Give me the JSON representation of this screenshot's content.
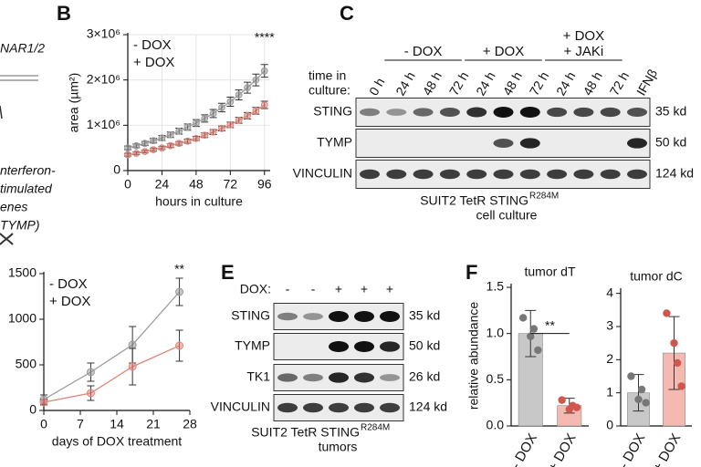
{
  "panel_labels": [
    "B",
    "C",
    "E",
    "F"
  ],
  "fragments": [
    "NAR1/2",
    "nterferon-",
    "timulated",
    "enes",
    "TYMP)"
  ],
  "chart_data": [
    {
      "type": "line",
      "xlabel": "hours in culture",
      "ylabel": "area (µm²)",
      "x": [
        0,
        6,
        12,
        18,
        24,
        30,
        36,
        42,
        48,
        54,
        60,
        66,
        72,
        78,
        84,
        90,
        96
      ],
      "series": [
        {
          "name": "- DOX",
          "color": "#9a9a9a",
          "label_color": "#555555",
          "values": [
            500000,
            547000,
            600000,
            660000,
            720000,
            790000,
            870000,
            960000,
            1050000,
            1150000,
            1260000,
            1390000,
            1520000,
            1670000,
            1830000,
            2000000,
            2200000
          ],
          "errors": [
            40000,
            40000,
            45000,
            50000,
            55000,
            60000,
            65000,
            70000,
            75000,
            80000,
            90000,
            95000,
            100000,
            110000,
            120000,
            130000,
            140000
          ]
        },
        {
          "name": "+ DOX",
          "color": "#e0857a",
          "label_color": "#d0574c",
          "values": [
            350000,
            380000,
            420000,
            460000,
            500000,
            550000,
            600000,
            650000,
            710000,
            780000,
            850000,
            930000,
            1010000,
            1110000,
            1210000,
            1320000,
            1450000
          ],
          "errors": [
            30000,
            30000,
            30000,
            35000,
            35000,
            40000,
            40000,
            45000,
            45000,
            50000,
            55000,
            55000,
            60000,
            65000,
            70000,
            75000,
            80000
          ]
        }
      ],
      "xlim": [
        0,
        100
      ],
      "xticks": [
        0,
        24,
        48,
        72,
        96
      ],
      "ylim": [
        0,
        3000000
      ],
      "yticks": [
        0,
        {
          "value": 1000000,
          "label": "1×10⁶"
        },
        {
          "value": 2000000,
          "label": "2×10⁶"
        },
        {
          "value": 3000000,
          "label": "3×10⁶"
        }
      ],
      "grid": true,
      "legend": "upper left",
      "annotations": [
        {
          "text": "****",
          "x": 96
        }
      ]
    },
    {
      "type": "line",
      "xlabel": "days of DOX treatment",
      "x": [
        0,
        9,
        17,
        26
      ],
      "series": [
        {
          "name": "- DOX",
          "color": "#9a9a9a",
          "label_color": "#222222",
          "values": [
            120,
            420,
            720,
            1300
          ],
          "errors": [
            50,
            100,
            200,
            150
          ]
        },
        {
          "name": "+ DOX",
          "color": "#e0857a",
          "label_color": "#d0574c",
          "values": [
            90,
            190,
            480,
            710
          ],
          "errors": [
            30,
            80,
            200,
            170
          ]
        }
      ],
      "xlim": [
        0,
        28
      ],
      "xticks": [
        0,
        7,
        14,
        21,
        28
      ],
      "ylim": [
        0,
        1500
      ],
      "yticks": [
        0,
        500,
        1000,
        1500
      ],
      "grid": false,
      "legend": "upper left",
      "annotations": [
        {
          "text": "**",
          "x": 26
        }
      ]
    },
    {
      "type": "bar",
      "title": "tumor dT",
      "ylabel": "relative abundance",
      "categories": [
        "- DOX",
        "+ DOX"
      ],
      "label_colors": [
        "#111111",
        "#d0574c"
      ],
      "values": [
        1.0,
        0.22
      ],
      "errors": [
        0.25,
        0.08
      ],
      "colors": [
        "#c8c8c8",
        "#f4bab2"
      ],
      "point_colors": [
        "#777777",
        "#d0574c"
      ],
      "points": [
        [
          1.17,
          0.97,
          0.82,
          1.05
        ],
        [
          0.28,
          0.18,
          0.2,
          0.22
        ]
      ],
      "ylim": [
        0,
        1.52
      ],
      "yticks": [
        {
          "value": 0,
          "label": "0.0"
        },
        0.5,
        {
          "value": 1,
          "label": "1.0"
        },
        1.5
      ],
      "grid": false,
      "annotations": [
        {
          "text": "**"
        }
      ]
    },
    {
      "type": "bar",
      "title": "tumor dC",
      "categories": [
        "- DOX",
        "+ DOX"
      ],
      "label_colors": [
        "#111111",
        "#d0574c"
      ],
      "values": [
        1.0,
        2.2
      ],
      "errors": [
        0.55,
        1.1
      ],
      "colors": [
        "#c8c8c8",
        "#f4bab2"
      ],
      "point_colors": [
        "#777777",
        "#d0574c"
      ],
      "points": [
        [
          1.5,
          0.8,
          0.7,
          1.1
        ],
        [
          3.4,
          2.5,
          1.2,
          1.9
        ]
      ],
      "ylim": [
        0,
        4.1
      ],
      "yticks": [
        0,
        1,
        2,
        3,
        4
      ],
      "grid": false
    }
  ],
  "blot_c": {
    "time_label": [
      "time in",
      "culture:"
    ],
    "groups": [
      {
        "lines": [
          "- DOX"
        ],
        "colors": [
          "#111111"
        ]
      },
      {
        "lines": [
          "+ DOX"
        ],
        "colors": [
          "#d0574c"
        ]
      },
      {
        "lines": [
          "+ DOX",
          "+ JAKi"
        ],
        "colors": [
          "#d0574c",
          "#111111"
        ]
      }
    ],
    "lanes": [
      "0 h",
      "24 h",
      "48 h",
      "72 h",
      "24 h",
      "48 h",
      "72 h",
      "24 h",
      "48 h",
      "72 h",
      "IFNβ"
    ],
    "rows": [
      {
        "name": "STING",
        "kd": "35 kd",
        "bands": [
          0.5,
          0.4,
          0.6,
          0.7,
          0.85,
          1,
          1,
          0.75,
          0.75,
          0.75,
          0.7
        ]
      },
      {
        "name": "TYMP",
        "kd": "50 kd",
        "bands": [
          0,
          0,
          0,
          0,
          0,
          0.7,
          0.9,
          0,
          0,
          0,
          0.9
        ]
      },
      {
        "name": "VINCULIN",
        "kd": "124 kd",
        "bands": [
          0.8,
          0.8,
          0.8,
          0.8,
          0.8,
          0.8,
          0.8,
          0.8,
          0.8,
          0.8,
          0.8
        ]
      }
    ],
    "caption": [
      "SUIT2 TetR STING",
      "R284M",
      "cell culture"
    ]
  },
  "blot_e": {
    "dox_label": "DOX:",
    "lanes": [
      "-",
      "-",
      "+",
      "+",
      "+"
    ],
    "lane_colors": [
      "#111111",
      "#111111",
      "#d0574c",
      "#d0574c",
      "#d0574c"
    ],
    "rows": [
      {
        "name": "STING",
        "kd": "35 kd",
        "bands": [
          0.5,
          0.4,
          1,
          1,
          1
        ]
      },
      {
        "name": "TYMP",
        "kd": "50 kd",
        "bands": [
          0,
          0,
          1,
          1,
          0.9
        ]
      },
      {
        "name": "TK1",
        "kd": "26 kd",
        "bands": [
          0.6,
          0.5,
          0.9,
          0.85,
          0.4
        ]
      },
      {
        "name": "VINCULIN",
        "kd": "124 kd",
        "bands": [
          0.8,
          0.8,
          0.8,
          0.8,
          0.8
        ]
      }
    ],
    "caption": [
      "SUIT2 TetR STING",
      "R284M",
      "tumors"
    ]
  }
}
